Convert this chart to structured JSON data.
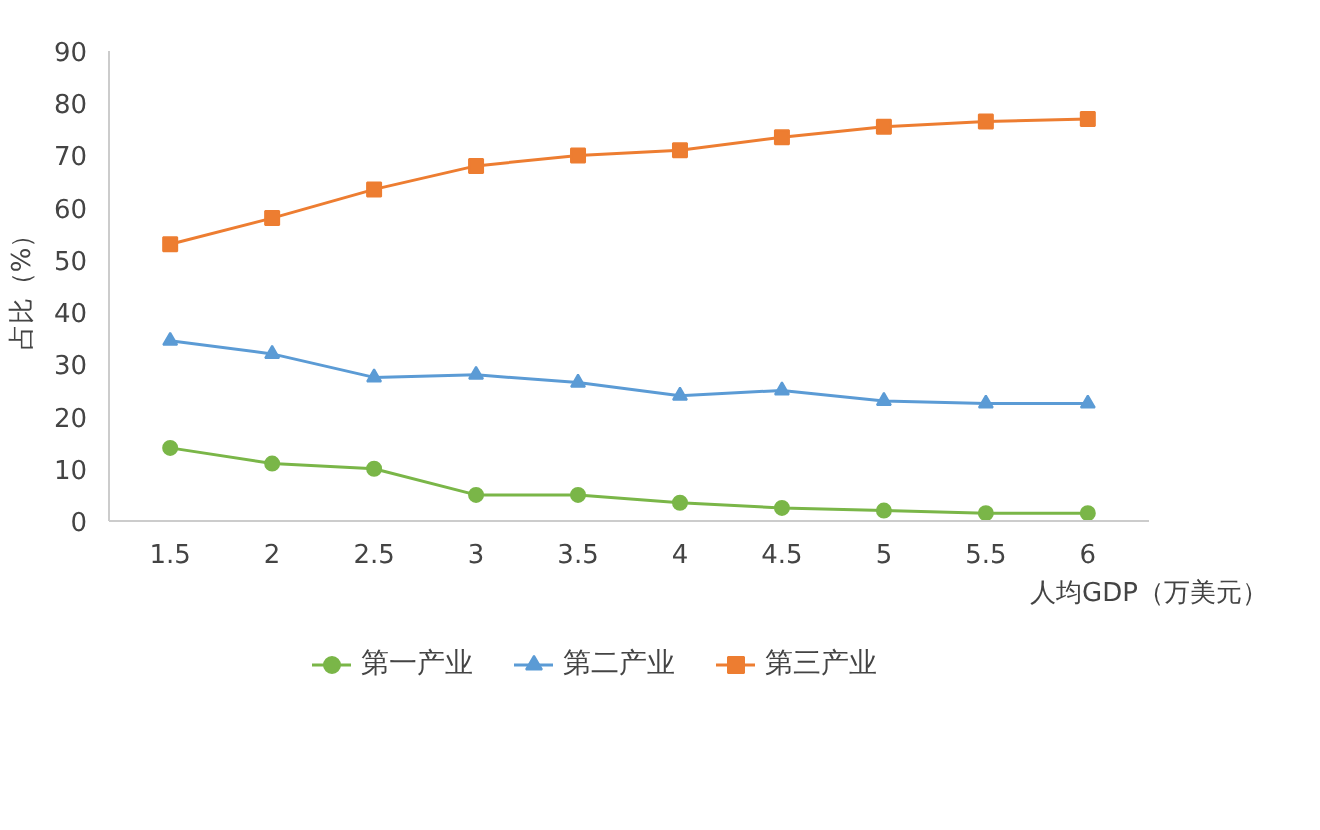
{
  "chart_data": {
    "type": "line",
    "xlabel": "人均GDP（万美元）",
    "ylabel": "占比（%）",
    "categories": [
      "1.5",
      "2",
      "2.5",
      "3",
      "3.5",
      "4",
      "4.5",
      "5",
      "5.5",
      "6"
    ],
    "ylim": [
      0,
      90
    ],
    "yticks": [
      0,
      10,
      20,
      30,
      40,
      50,
      60,
      70,
      80,
      90
    ],
    "grid": false,
    "legend": "bottom",
    "series": [
      {
        "name": "第一产业",
        "color": "#7ab648",
        "marker": "circle",
        "values": [
          14,
          11,
          10,
          5,
          5,
          3.5,
          2.5,
          2,
          1.5,
          1.5
        ]
      },
      {
        "name": "第二产业",
        "color": "#5b9bd5",
        "marker": "triangle",
        "values": [
          34.5,
          32,
          27.5,
          28,
          26.5,
          24,
          25,
          23,
          22.5,
          22.5
        ]
      },
      {
        "name": "第三产业",
        "color": "#ed7d31",
        "marker": "square",
        "values": [
          53,
          58,
          63.5,
          68,
          70,
          71,
          73.5,
          75.5,
          76.5,
          77
        ]
      }
    ]
  }
}
